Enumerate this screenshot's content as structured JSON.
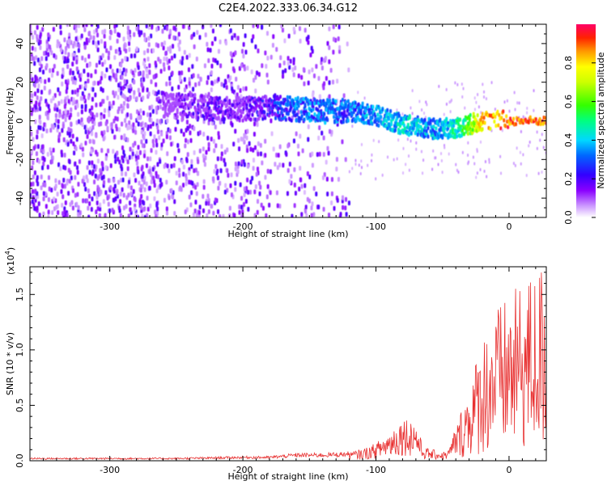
{
  "title": "C2E4.2022.333.06.34.G12",
  "chart_data": [
    {
      "type": "heatmap",
      "xlabel": "Height of straight line (km)",
      "ylabel": "Frequency (Hz)",
      "xlim": [
        -360,
        28
      ],
      "ylim": [
        -50,
        50
      ],
      "x_ticks": [
        -300,
        -200,
        -100,
        0
      ],
      "y_ticks": [
        -40,
        -20,
        0,
        20,
        40
      ],
      "colorbar": {
        "label": "Normalized spectral amplitude",
        "range": [
          0.0,
          1.0
        ],
        "ticks": [
          "0.0",
          "0.2",
          "0.4",
          "0.6",
          "0.8"
        ],
        "colormap": "rainbow (white-violet-blue-cyan-green-yellow-red)"
      },
      "grid": false,
      "description_points": {
        "noise_region_x": [
          -360,
          -120
        ],
        "ridge_x": [
          -260,
          -240,
          -220,
          -200,
          -180,
          -160,
          -140,
          -120,
          -100,
          -80,
          -60,
          -45,
          -35,
          -20,
          0,
          28
        ],
        "ridge_freq": [
          8,
          8,
          6,
          6,
          7,
          6,
          5,
          5,
          3,
          -2,
          -4,
          -4,
          -3,
          0,
          0,
          0
        ],
        "ridge_amplitude": [
          0.15,
          0.2,
          0.25,
          0.2,
          0.3,
          0.4,
          0.4,
          0.4,
          0.45,
          0.5,
          0.45,
          0.5,
          0.6,
          0.9,
          1.0,
          1.0
        ]
      }
    },
    {
      "type": "line",
      "xlabel": "Height of straight line (km)",
      "ylabel": "SNR (10 * v/v)",
      "y_scale_label": "(x10",
      "y_scale_exp": "4",
      "xlim": [
        -360,
        28
      ],
      "ylim": [
        0,
        1.75
      ],
      "x_ticks": [
        -300,
        -200,
        -100,
        0
      ],
      "y_ticks": [
        "0.0",
        "0.5",
        "1.0",
        "1.5"
      ],
      "color": "#e83030",
      "grid": false,
      "series": [
        {
          "x": [
            -360,
            -300,
            -250,
            -200,
            -180,
            -160,
            -140,
            -120,
            -110,
            -100,
            -90,
            -80,
            -70,
            -65,
            -60,
            -50,
            -45,
            -40,
            -35,
            -30,
            -25,
            -20,
            -15,
            -10,
            -5,
            0,
            5,
            10,
            15,
            20,
            28
          ],
          "y": [
            0.02,
            0.02,
            0.02,
            0.03,
            0.03,
            0.05,
            0.05,
            0.06,
            0.08,
            0.12,
            0.2,
            0.3,
            0.28,
            0.1,
            0.08,
            0.06,
            0.08,
            0.25,
            0.45,
            0.6,
            0.8,
            1.0,
            1.1,
            1.2,
            1.25,
            1.3,
            1.35,
            1.4,
            1.45,
            1.5,
            1.6
          ]
        }
      ]
    }
  ]
}
